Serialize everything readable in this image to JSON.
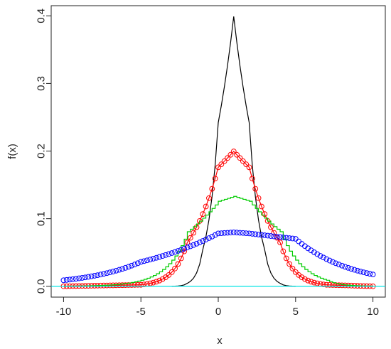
{
  "chart_data": {
    "type": "line",
    "xlabel": "x",
    "ylabel": "f(x)",
    "xlim": [
      -10.8,
      10.8
    ],
    "ylim": [
      -0.016,
      0.415
    ],
    "x_ticks": [
      -10,
      -5,
      0,
      5,
      10
    ],
    "x_tick_labels": [
      "-10",
      "-5",
      "0",
      "5",
      "10"
    ],
    "y_ticks": [
      0.0,
      0.1,
      0.2,
      0.3,
      0.4
    ],
    "y_tick_labels": [
      "0.0",
      "0.1",
      "0.2",
      "0.3",
      "0.4"
    ],
    "grid": false,
    "legend": "none",
    "series": [
      {
        "kind": "line",
        "color": "#000000",
        "x_range": [
          -3,
          5
        ],
        "step": 0.2,
        "x_samples": [
          -3,
          -2,
          -1,
          0,
          1,
          2,
          3,
          4,
          5
        ],
        "y_samples": [
          0.0001,
          0.0044,
          0.054,
          0.242,
          0.399,
          0.242,
          0.054,
          0.0044,
          0.0001
        ]
      },
      {
        "kind": "circles+line",
        "color": "#ff0000",
        "x_range": [
          -10,
          10
        ],
        "step": 0.2,
        "x_samples": [
          -10,
          -5,
          -2,
          0,
          1,
          2,
          4,
          7,
          10
        ],
        "y_samples": [
          0.0,
          0.0022,
          0.0648,
          0.176,
          0.1995,
          0.176,
          0.0648,
          0.0022,
          0.0
        ]
      },
      {
        "kind": "step",
        "color": "#00cc00",
        "x_range": [
          -10,
          10
        ],
        "step": 0.2,
        "x_samples": [
          -10,
          -5,
          -2,
          0,
          1,
          2,
          4,
          7,
          10
        ],
        "y_samples": [
          0.0002,
          0.0089,
          0.0807,
          0.1258,
          0.133,
          0.1258,
          0.0807,
          0.0089,
          0.0002
        ]
      },
      {
        "kind": "circles",
        "color": "#0000ff",
        "x_range": [
          -10,
          10
        ],
        "step": 0.2,
        "x_samples": [
          -10,
          -5,
          0,
          1,
          2,
          5,
          10
        ],
        "y_samples": [
          0.0089,
          0.0361,
          0.0782,
          0.0798,
          0.0782,
          0.0702,
          0.0175
        ]
      },
      {
        "kind": "hline",
        "color": "#00e5e5",
        "y": 0
      }
    ]
  }
}
